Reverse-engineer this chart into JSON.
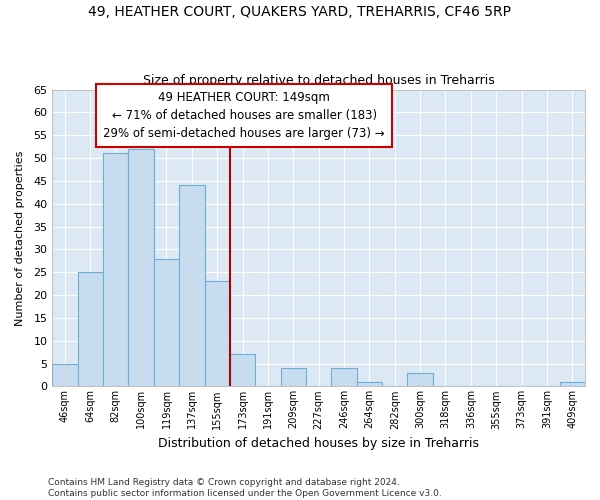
{
  "title": "49, HEATHER COURT, QUAKERS YARD, TREHARRIS, CF46 5RP",
  "subtitle": "Size of property relative to detached houses in Treharris",
  "xlabel": "Distribution of detached houses by size in Treharris",
  "ylabel": "Number of detached properties",
  "bar_labels": [
    "46sqm",
    "64sqm",
    "82sqm",
    "100sqm",
    "119sqm",
    "137sqm",
    "155sqm",
    "173sqm",
    "191sqm",
    "209sqm",
    "227sqm",
    "246sqm",
    "264sqm",
    "282sqm",
    "300sqm",
    "318sqm",
    "336sqm",
    "355sqm",
    "373sqm",
    "391sqm",
    "409sqm"
  ],
  "bar_heights": [
    5,
    25,
    51,
    52,
    28,
    44,
    23,
    7,
    0,
    4,
    0,
    4,
    1,
    0,
    3,
    0,
    0,
    0,
    0,
    0,
    1
  ],
  "bar_color": "#c8dcf0",
  "bar_edge_color": "#6baed6",
  "vline_color": "#aa0000",
  "vline_position": 6.5,
  "ylim": [
    0,
    65
  ],
  "yticks": [
    0,
    5,
    10,
    15,
    20,
    25,
    30,
    35,
    40,
    45,
    50,
    55,
    60,
    65
  ],
  "annotation_title": "49 HEATHER COURT: 149sqm",
  "annotation_line1": "← 71% of detached houses are smaller (183)",
  "annotation_line2": "29% of semi-detached houses are larger (73) →",
  "footer_line1": "Contains HM Land Registry data © Crown copyright and database right 2024.",
  "footer_line2": "Contains public sector information licensed under the Open Government Licence v3.0.",
  "plot_bg_color": "#dce9f5",
  "background_color": "#ffffff",
  "grid_color": "#ffffff"
}
